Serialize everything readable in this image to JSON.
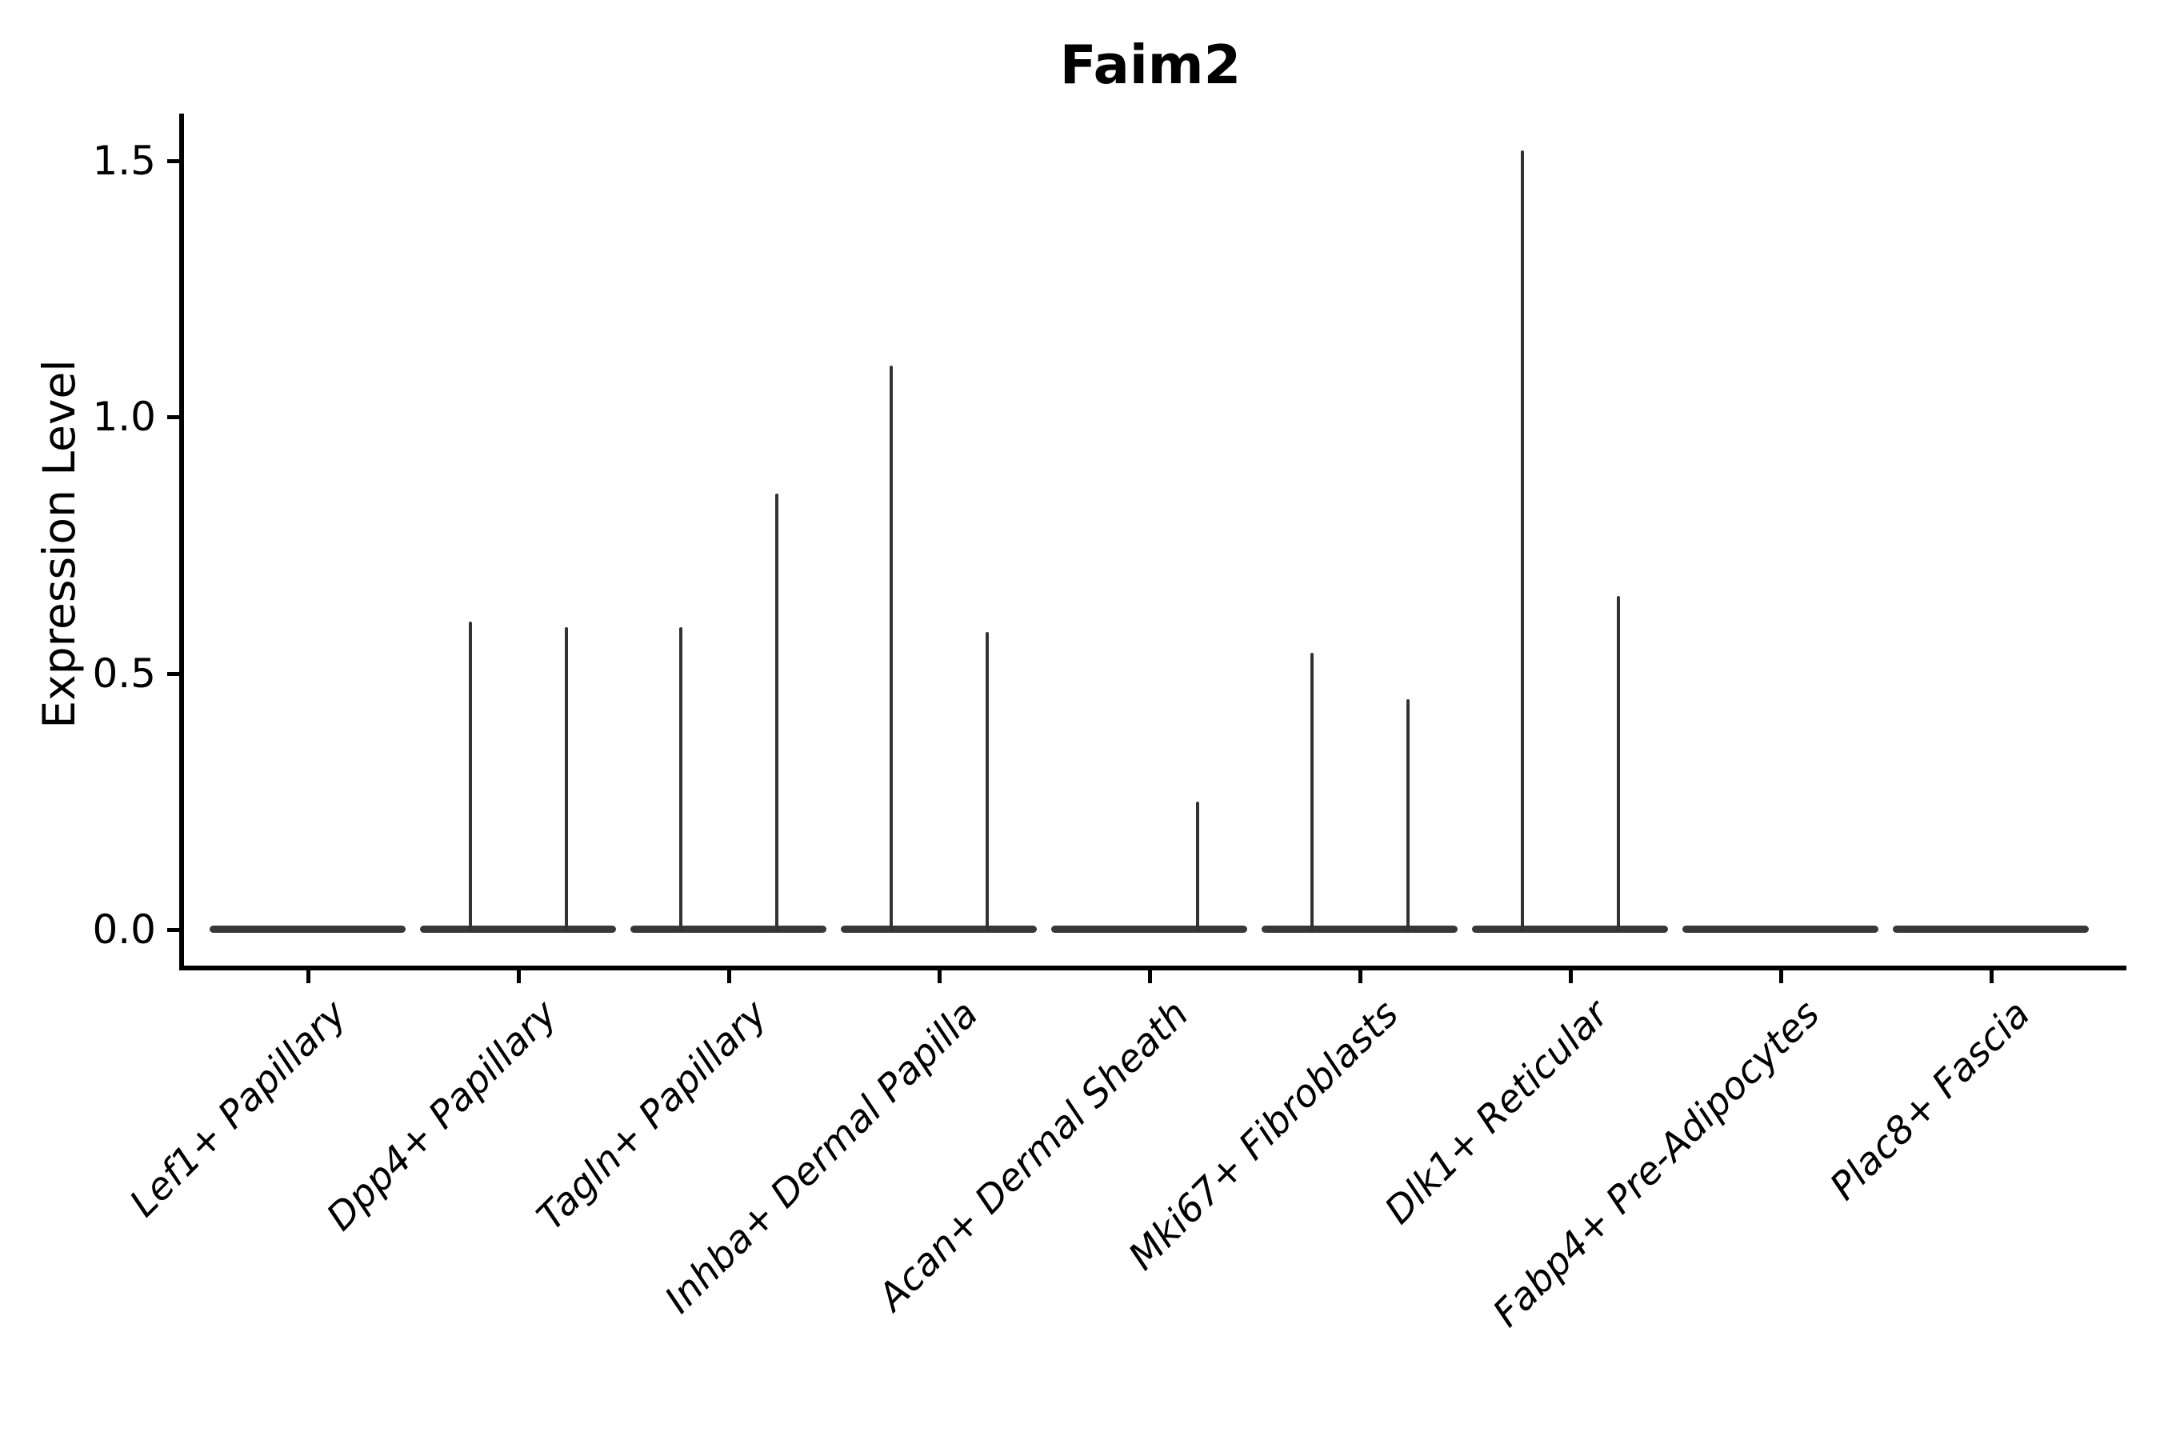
{
  "figure": {
    "title": "Faim2",
    "ylabel": "Expression Level"
  },
  "colors": {
    "violin": "#383838",
    "spike": "#333333",
    "axis": "#000000",
    "text": "#000000",
    "background": "#ffffff"
  },
  "chart_data": {
    "type": "violin",
    "title": "Faim2",
    "xlabel": "",
    "ylabel": "Expression Level",
    "ylim": [
      -0.07,
      1.59
    ],
    "yticks": [
      0.0,
      0.5,
      1.0,
      1.5
    ],
    "ytick_labels": [
      "0.0",
      "0.5",
      "1.0",
      "1.5"
    ],
    "grid": false,
    "legend": "none",
    "categories": [
      "Lef1+ Papillary",
      "Dpp4+ Papillary",
      "Tagln+ Papillary",
      "Inhba+ Dermal Papilla",
      "Acan+ Dermal Sheath",
      "Mki67+ Fibroblasts",
      "Dlk1+ Reticular",
      "Fabp4+ Pre-Adipocytes",
      "Plac8+ Fascia"
    ],
    "description": "Violin plot of Faim2 expression per cell type; every violin is collapsed into a flat bar at 0 (most cells not expressing), with two side-by-side sub-violins per category whose thin vertical spikes mark the maximum expression tails.",
    "violins": [
      {
        "label": "Lef1+ Papillary",
        "spikes": []
      },
      {
        "label": "Dpp4+ Papillary",
        "spikes": [
          {
            "side": "left",
            "max": 0.6
          },
          {
            "side": "right",
            "max": 0.59
          }
        ]
      },
      {
        "label": "Tagln+ Papillary",
        "spikes": [
          {
            "side": "left",
            "max": 0.59
          },
          {
            "side": "right",
            "max": 0.85
          }
        ]
      },
      {
        "label": "Inhba+ Dermal Papilla",
        "spikes": [
          {
            "side": "left",
            "max": 1.1
          },
          {
            "side": "right",
            "max": 0.58
          }
        ]
      },
      {
        "label": "Acan+ Dermal Sheath",
        "spikes": [
          {
            "side": "right",
            "max": 0.25
          }
        ]
      },
      {
        "label": "Mki67+ Fibroblasts",
        "spikes": [
          {
            "side": "left",
            "max": 0.54
          },
          {
            "side": "right",
            "max": 0.45
          }
        ]
      },
      {
        "label": "Dlk1+ Reticular",
        "spikes": [
          {
            "side": "left",
            "max": 1.52
          },
          {
            "side": "right",
            "max": 0.65
          }
        ]
      },
      {
        "label": "Fabp4+ Pre-Adipocytes",
        "spikes": []
      },
      {
        "label": "Plac8+ Fascia",
        "spikes": []
      }
    ]
  }
}
